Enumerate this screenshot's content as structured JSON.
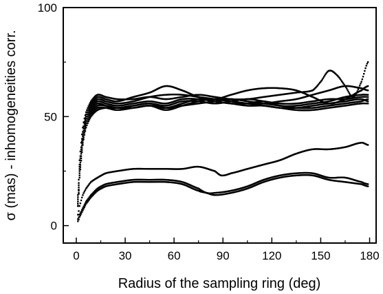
{
  "chart_data": {
    "type": "scatter",
    "title": "",
    "xlabel": "Radius of the sampling ring (deg)",
    "ylabel": "σ (mas) - inhomogeneities corr.",
    "xlim": [
      -8,
      184
    ],
    "ylim": [
      -8,
      100
    ],
    "xticks": [
      0,
      30,
      60,
      90,
      120,
      150,
      180
    ],
    "yticks": [
      0,
      50,
      100
    ],
    "grid": false,
    "legend": "none",
    "marker_color": "#000000",
    "series": [
      {
        "x": [
          1,
          2,
          4,
          6,
          9,
          13,
          18,
          25,
          35,
          45,
          55,
          65,
          75,
          85,
          95,
          105,
          115,
          125,
          135,
          145,
          150,
          155,
          160,
          165,
          170,
          175,
          179
        ],
        "y": [
          14,
          30,
          45,
          52,
          57,
          60,
          59,
          58,
          58,
          59,
          58,
          59,
          60,
          59,
          58,
          58,
          59,
          60,
          61,
          62,
          66,
          71,
          69,
          64,
          59,
          66,
          75
        ]
      },
      {
        "x": [
          1,
          2,
          4,
          6,
          9,
          13,
          18,
          25,
          35,
          45,
          55,
          65,
          75,
          85,
          95,
          105,
          115,
          125,
          135,
          145,
          155,
          165,
          175,
          179
        ],
        "y": [
          13,
          28,
          43,
          51,
          56,
          59,
          58,
          57,
          59,
          61,
          64,
          62,
          59,
          58,
          60,
          62,
          63,
          63,
          62,
          59,
          56,
          58,
          62,
          64
        ]
      },
      {
        "x": [
          1,
          2,
          4,
          6,
          9,
          13,
          18,
          25,
          35,
          45,
          55,
          65,
          75,
          85,
          95,
          105,
          115,
          125,
          135,
          145,
          155,
          165,
          175,
          179
        ],
        "y": [
          12,
          27,
          42,
          50,
          55,
          58,
          57,
          56,
          57,
          59,
          60,
          60,
          59,
          58,
          57,
          56,
          56,
          57,
          58,
          60,
          62,
          64,
          63,
          62
        ]
      },
      {
        "x": [
          1,
          2,
          4,
          6,
          9,
          13,
          18,
          25,
          35,
          45,
          55,
          65,
          75,
          85,
          95,
          105,
          115,
          125,
          135,
          145,
          155,
          165,
          175,
          179
        ],
        "y": [
          11,
          26,
          41,
          49,
          54,
          57,
          56,
          55,
          56,
          57,
          56,
          58,
          58,
          57,
          56,
          56,
          57,
          55,
          55,
          56,
          57,
          59,
          60,
          60
        ]
      },
      {
        "x": [
          1,
          2,
          4,
          6,
          9,
          13,
          18,
          25,
          35,
          45,
          55,
          65,
          75,
          85,
          95,
          105,
          115,
          125,
          135,
          145,
          155,
          165,
          175,
          179
        ],
        "y": [
          10,
          25,
          40,
          48,
          53,
          56,
          55,
          54,
          55,
          56,
          55,
          57,
          57,
          56,
          57,
          58,
          57,
          56,
          56,
          57,
          58,
          58,
          59,
          59
        ]
      },
      {
        "x": [
          1,
          2,
          4,
          6,
          9,
          13,
          18,
          25,
          35,
          45,
          55,
          65,
          75,
          85,
          95,
          105,
          115,
          125,
          135,
          145,
          155,
          165,
          175,
          179
        ],
        "y": [
          10,
          24,
          39,
          47,
          52,
          55,
          55,
          54,
          54,
          55,
          54,
          56,
          58,
          57,
          56,
          55,
          55,
          54,
          54,
          55,
          56,
          57,
          58,
          57
        ]
      },
      {
        "x": [
          1,
          2,
          4,
          6,
          9,
          13,
          18,
          25,
          35,
          45,
          55,
          65,
          75,
          85,
          95,
          105,
          115,
          125,
          135,
          145,
          155,
          165,
          175,
          179
        ],
        "y": [
          9,
          23,
          38,
          46,
          51,
          54,
          54,
          53,
          54,
          55,
          53,
          55,
          57,
          58,
          57,
          56,
          55,
          54,
          53,
          53,
          54,
          55,
          56,
          56
        ]
      },
      {
        "x": [
          1,
          2,
          4,
          6,
          9,
          13,
          18,
          25,
          35,
          45,
          55,
          65,
          75,
          85,
          95,
          105,
          115,
          125,
          135,
          145,
          155,
          165,
          175,
          179
        ],
        "y": [
          9,
          22,
          37,
          45,
          50,
          53,
          54,
          54,
          55,
          56,
          54,
          55,
          56,
          57,
          58,
          57,
          56,
          55,
          54,
          54,
          55,
          56,
          57,
          58
        ]
      },
      {
        "x": [
          1,
          2,
          4,
          6,
          9,
          13,
          18,
          25,
          35,
          45,
          55,
          65,
          75,
          85,
          89,
          95,
          105,
          115,
          125,
          135,
          145,
          155,
          165,
          175,
          179
        ],
        "y": [
          5,
          9,
          14,
          17,
          20,
          22,
          24,
          25,
          26,
          26,
          26,
          26,
          27,
          25,
          23,
          24,
          26,
          28,
          30,
          33,
          35,
          35,
          36,
          38,
          37
        ]
      },
      {
        "x": [
          1,
          2,
          4,
          6,
          9,
          13,
          18,
          25,
          35,
          45,
          55,
          65,
          75,
          80,
          85,
          95,
          105,
          115,
          125,
          135,
          145,
          155,
          165,
          175,
          179
        ],
        "y": [
          3,
          5,
          8,
          11,
          14,
          17,
          19,
          20,
          21,
          21,
          21,
          20,
          17,
          15,
          15,
          16,
          18,
          21,
          23,
          24,
          24,
          22,
          22,
          20,
          19
        ]
      },
      {
        "x": [
          1,
          2,
          4,
          6,
          9,
          13,
          18,
          25,
          35,
          45,
          55,
          65,
          75,
          80,
          85,
          95,
          105,
          115,
          125,
          135,
          145,
          155,
          165,
          175,
          179
        ],
        "y": [
          2,
          4,
          7,
          10,
          13,
          16,
          18,
          19,
          20,
          20,
          20,
          19,
          16,
          15,
          14,
          15,
          17,
          20,
          22,
          23,
          23,
          21,
          20,
          19,
          18
        ]
      }
    ]
  }
}
